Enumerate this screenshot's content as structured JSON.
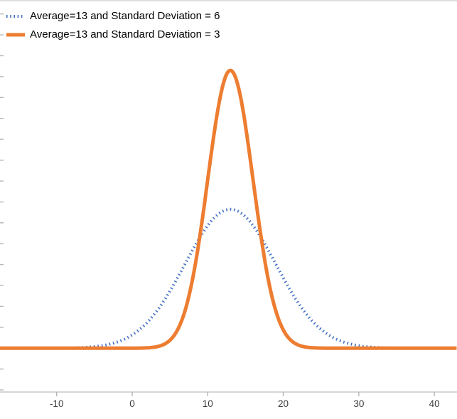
{
  "chart_data": {
    "type": "line",
    "title": "",
    "curve": "normal_pdf",
    "xlim": [
      -17.5,
      43
    ],
    "ylim": [
      -0.021,
      0.166
    ],
    "x_ticks": [
      -10,
      0,
      10,
      20,
      30,
      40
    ],
    "y_tick_step": 0.01,
    "grid": false,
    "legend_position": "top-left",
    "series": [
      {
        "name": "Average=13 and Standard Deviation = 6",
        "mean": 13,
        "sd": 6,
        "peak_value": 0.0665,
        "color": "#4472C4",
        "line_style": "dotted",
        "width": 4
      },
      {
        "name": "Average=13 and Standard Deviation = 3",
        "mean": 13,
        "sd": 3,
        "peak_value": 0.133,
        "color": "#ED7D31",
        "line_style": "solid",
        "width": 5
      }
    ]
  },
  "colors": {
    "axis_line": "#c9c9c9",
    "tick": "#b5b5b5",
    "tick_label": "#3b3b3b",
    "background": "#ffffff"
  }
}
